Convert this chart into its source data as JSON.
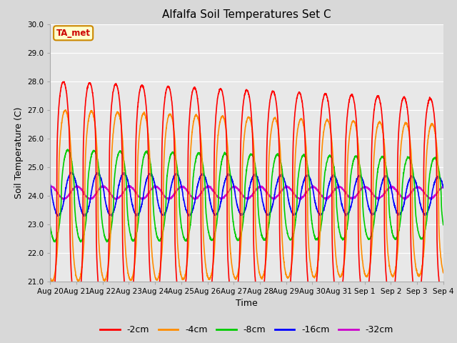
{
  "title": "Alfalfa Soil Temperatures Set C",
  "ylabel": "Soil Temperature (C)",
  "xlabel": "Time",
  "annotation": "TA_met",
  "ylim": [
    21.0,
    30.0
  ],
  "yticks": [
    21.0,
    22.0,
    23.0,
    24.0,
    25.0,
    26.0,
    27.0,
    28.0,
    29.0,
    30.0
  ],
  "xtick_labels": [
    "Aug 20",
    "Aug 21",
    "Aug 22",
    "Aug 23",
    "Aug 24",
    "Aug 25",
    "Aug 26",
    "Aug 27",
    "Aug 28",
    "Aug 29",
    "Aug 30",
    "Aug 31",
    "Sep 1",
    "Sep 2",
    "Sep 3",
    "Sep 4"
  ],
  "line_colors": [
    "#ff0000",
    "#ff8c00",
    "#00cc00",
    "#0000ff",
    "#cc00cc"
  ],
  "line_labels": [
    "-2cm",
    "-4cm",
    "-8cm",
    "-16cm",
    "-32cm"
  ],
  "fig_bg_color": "#d8d8d8",
  "plot_bg_color": "#e8e8e8",
  "n_points": 3000,
  "duration_days": 15.0,
  "period_days": 1.0,
  "amplitudes": [
    4.0,
    3.0,
    1.6,
    0.75,
    0.22
  ],
  "phase_shifts_days": [
    0.0,
    0.07,
    0.17,
    0.31,
    0.52
  ],
  "mean_temps": [
    24.0,
    24.0,
    24.0,
    24.05,
    24.1
  ],
  "peak_sharpness": [
    3.0,
    2.5,
    1.8,
    1.2,
    1.0
  ],
  "cooling_trend": [
    -0.03,
    -0.03,
    -0.02,
    -0.01,
    0.0
  ],
  "title_fontsize": 11,
  "tick_fontsize": 7.5,
  "label_fontsize": 9,
  "legend_fontsize": 9
}
